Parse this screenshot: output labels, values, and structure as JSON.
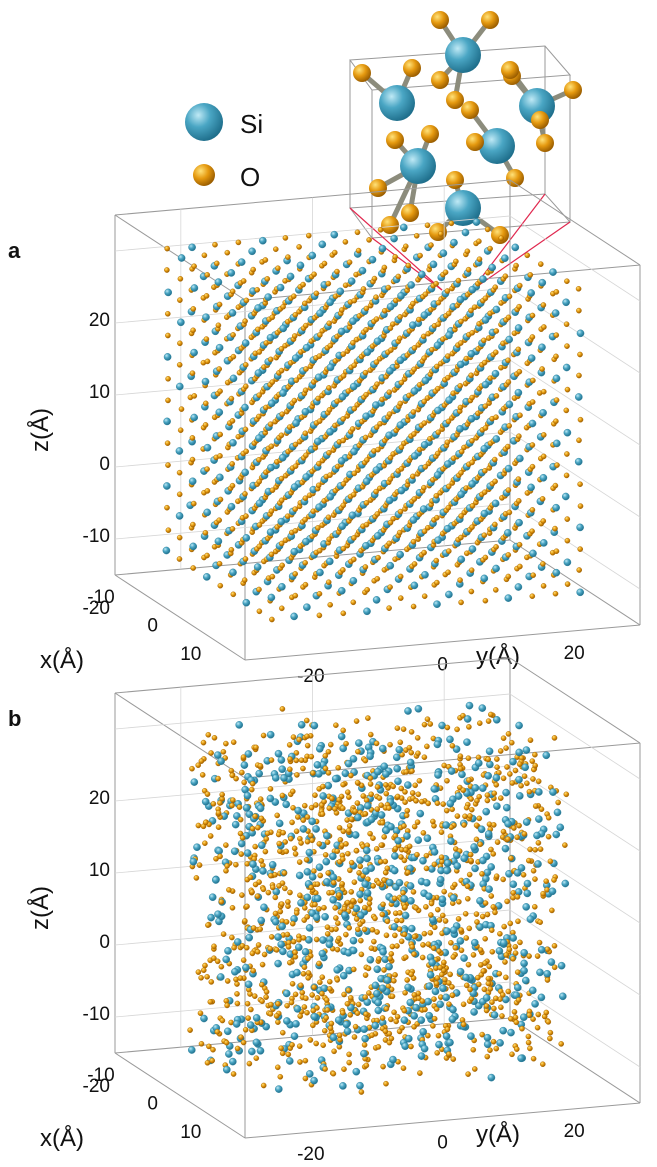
{
  "legend": [
    {
      "label": "Si",
      "color": "#4aa6c4"
    },
    {
      "label": "O",
      "color": "#e5990f"
    }
  ],
  "colors": {
    "si": "#4aa6c4",
    "si_dark": "#1f6f8c",
    "o": "#e5990f",
    "o_dark": "#9a5d00",
    "box": "#9a9a9a",
    "zoom_lines": "#e0284f",
    "bond": "#8c8c7c"
  },
  "chart_data": [
    {
      "panel": "a",
      "type": "scatter",
      "projection": "3d",
      "structure": "crystalline",
      "series": [
        {
          "name": "Si"
        },
        {
          "name": "O"
        }
      ],
      "xlabel": "x(Å)",
      "ylabel": "y(Å)",
      "zlabel": "z(Å)",
      "xticks": [
        "-10",
        "0",
        "10"
      ],
      "yticks": [
        "-20",
        "0",
        "20"
      ],
      "zticks": [
        "20",
        "10",
        "0",
        "-10",
        "-20"
      ],
      "xlim": [
        -15,
        15
      ],
      "ylim": [
        -30,
        30
      ],
      "zlim": [
        -25,
        25
      ],
      "grid": true,
      "inset": "unit cell"
    },
    {
      "panel": "b",
      "type": "scatter",
      "projection": "3d",
      "structure": "amorphous",
      "series": [
        {
          "name": "Si"
        },
        {
          "name": "O"
        }
      ],
      "xlabel": "x(Å)",
      "ylabel": "y(Å)",
      "zlabel": "z(Å)",
      "xticks": [
        "-10",
        "0",
        "10"
      ],
      "yticks": [
        "-20",
        "0",
        "20"
      ],
      "zticks": [
        "20",
        "10",
        "0",
        "-10",
        "-20"
      ],
      "xlim": [
        -15,
        15
      ],
      "ylim": [
        -30,
        30
      ],
      "zlim": [
        -25,
        25
      ],
      "grid": true
    }
  ]
}
